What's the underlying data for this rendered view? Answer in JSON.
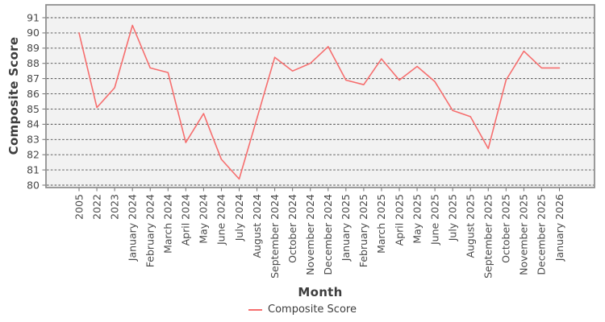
{
  "chart_data": {
    "type": "line",
    "title": "",
    "xlabel": "Month",
    "ylabel": "Composite Score",
    "legend_position": "bottom-center",
    "grid": "horizontal-dashed",
    "ylim": [
      79.8,
      92.0
    ],
    "yticks": [
      80,
      81,
      82,
      83,
      84,
      85,
      86,
      87,
      88,
      89,
      90,
      91
    ],
    "categories": [
      "2005",
      "2022",
      "2023",
      "January 2024",
      "February 2024",
      "March 2024",
      "April 2024",
      "May 2024",
      "June 2024",
      "July 2024",
      "August 2024",
      "September 2024",
      "October 2024",
      "November 2024",
      "December 2024",
      "January 2025",
      "February 2025",
      "March 2025",
      "April 2025",
      "May 2025",
      "June 2025",
      "July 2025",
      "August 2025",
      "September 2025",
      "October 2025",
      "November 2025",
      "December 2025",
      "January 2026"
    ],
    "series": [
      {
        "name": "Composite Score",
        "values": [
          90.0,
          85.1,
          86.4,
          90.5,
          87.7,
          87.4,
          82.8,
          84.7,
          81.7,
          80.4,
          84.4,
          88.4,
          87.5,
          88.0,
          89.1,
          86.9,
          86.6,
          88.3,
          86.9,
          87.8,
          86.8,
          84.9,
          84.5,
          82.4,
          86.9,
          88.8,
          87.7,
          87.7
        ]
      }
    ]
  },
  "palette": {
    "line": "#f66e6e",
    "plot_bg": "#f2f2f2",
    "frame": "#8a8a8a",
    "grid": "#4d4d4d",
    "tick": "#6e6e6e",
    "tick_text": "#4a4a4a",
    "title_text": "#3d3d3d"
  }
}
